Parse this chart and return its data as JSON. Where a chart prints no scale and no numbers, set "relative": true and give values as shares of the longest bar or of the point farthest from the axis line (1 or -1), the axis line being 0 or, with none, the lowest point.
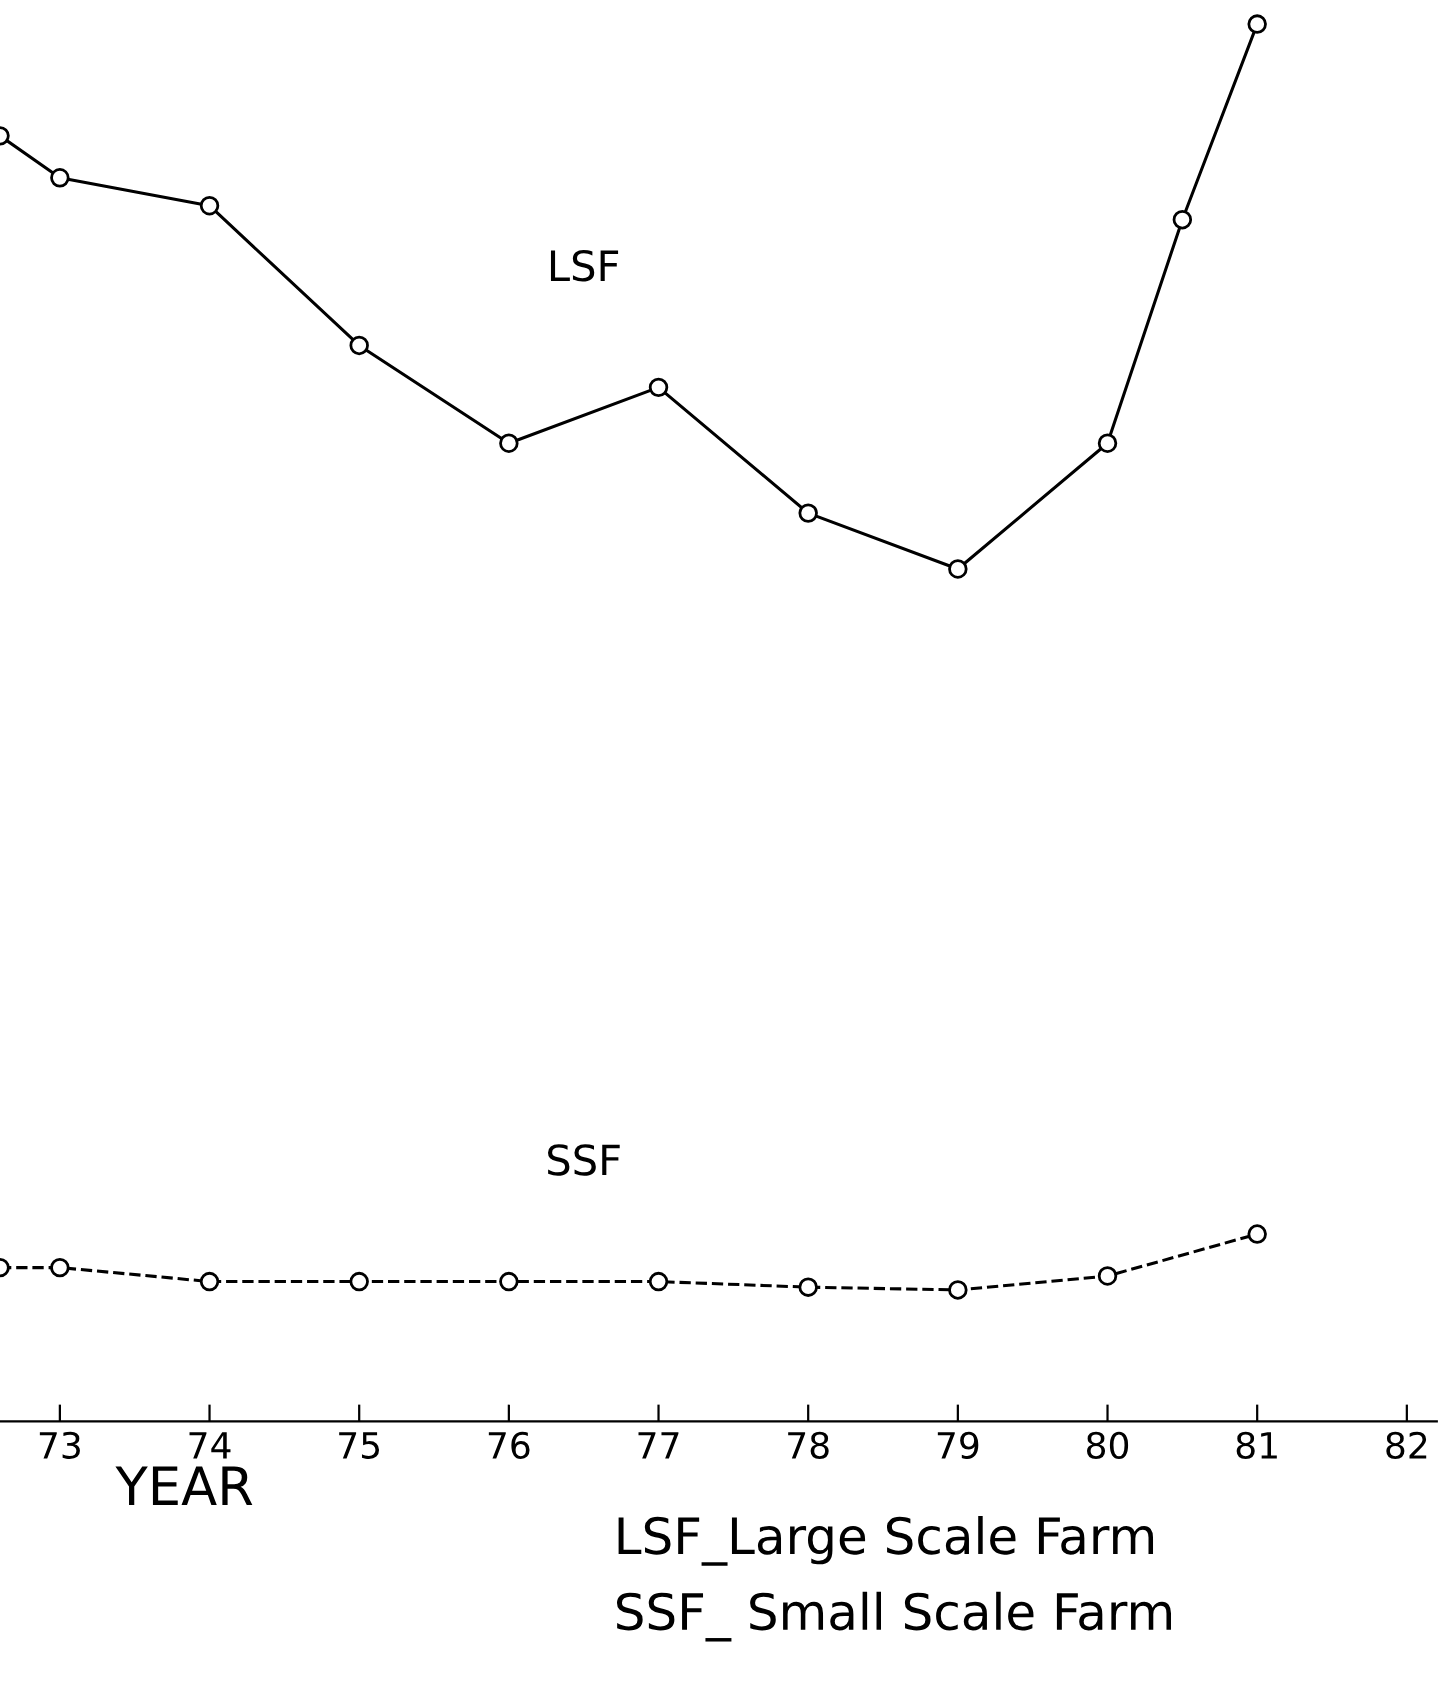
{
  "chart_data": {
    "type": "line",
    "relative": true,
    "xlabel": "YEAR",
    "xlim": [
      72.6,
      82.2
    ],
    "xticks": [
      73,
      74,
      75,
      76,
      77,
      78,
      79,
      80,
      81,
      82
    ],
    "marker": "circle",
    "legend": false,
    "grid": false,
    "annotations": [
      "LSF_Large Scale Farm",
      "SSF_ Small Scale Farm"
    ],
    "series": [
      {
        "name": "LSF",
        "color": "#000000",
        "line_style": "solid",
        "x": [
          72.6,
          73,
          74,
          75,
          76,
          77,
          78,
          79,
          80,
          80.5,
          81
        ],
        "values": [
          0.92,
          0.89,
          0.87,
          0.77,
          0.7,
          0.74,
          0.65,
          0.61,
          0.7,
          0.86,
          1
        ]
      },
      {
        "name": "SSF",
        "color": "#000000",
        "line_style": "dashed",
        "x": [
          72.6,
          73,
          74,
          75,
          76,
          77,
          78,
          79,
          80,
          81
        ],
        "values": [
          0.11,
          0.11,
          0.1,
          0.1,
          0.1,
          0.1,
          0.096,
          0.094,
          0.104,
          0.134
        ]
      }
    ]
  }
}
